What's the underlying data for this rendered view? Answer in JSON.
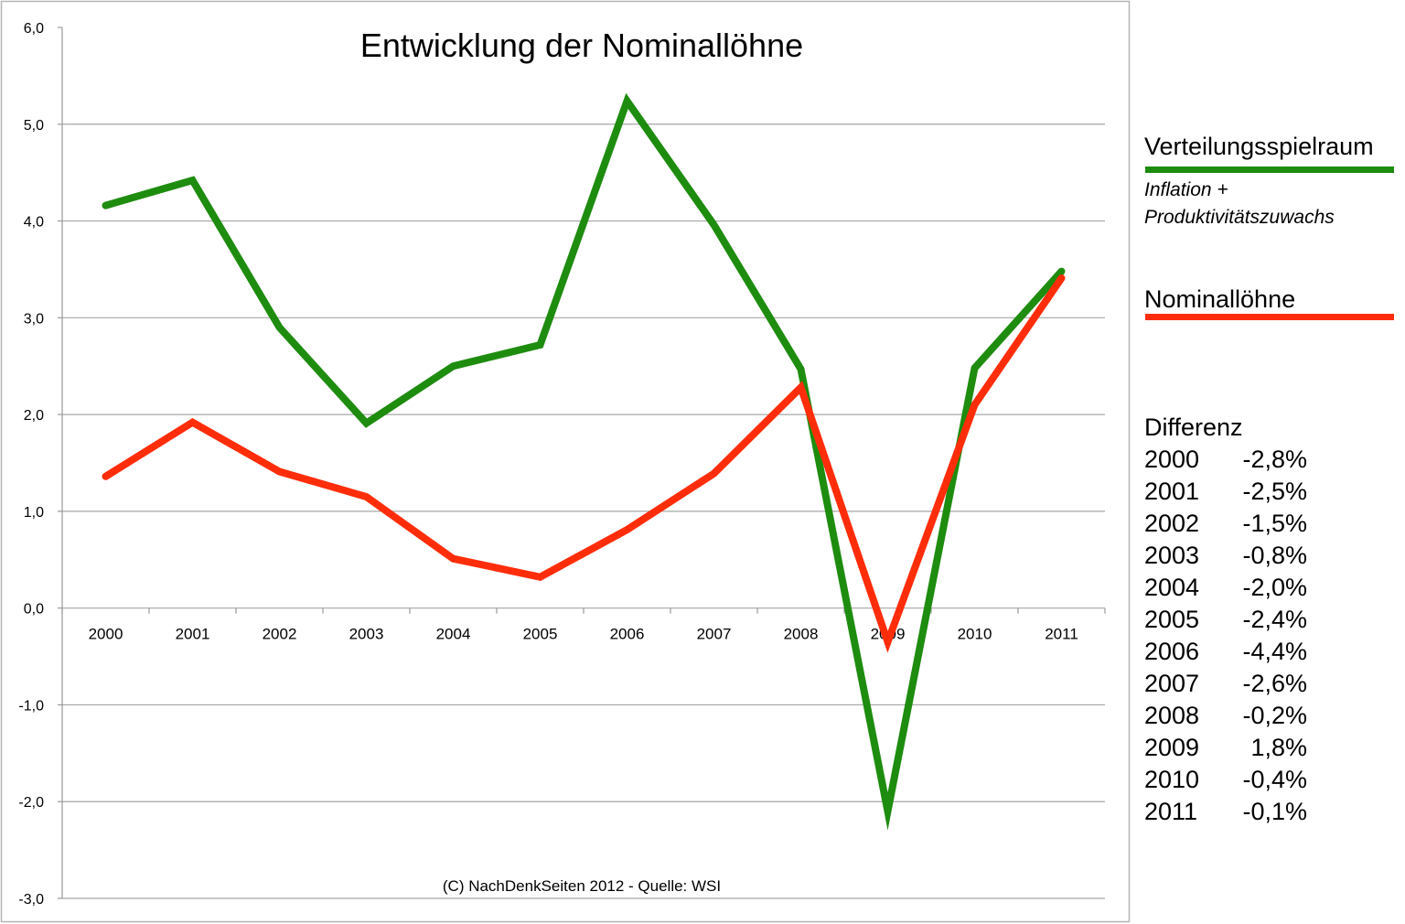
{
  "chart_data": {
    "type": "line",
    "title": "Entwicklung der Nominallöhne",
    "source_note": "(C) NachDenkSeiten 2012  - Quelle: WSI",
    "categories": [
      "2000",
      "2001",
      "2002",
      "2003",
      "2004",
      "2005",
      "2006",
      "2007",
      "2008",
      "2009",
      "2010",
      "2011"
    ],
    "ylim": [
      -3,
      6
    ],
    "yticks": [
      "6,0",
      "5,0",
      "4,0",
      "3,0",
      "2,0",
      "1,0",
      "0,0",
      "-1,0",
      "-2,0",
      "-3,0"
    ],
    "grid": true,
    "legend_placement": "right",
    "series": [
      {
        "name": "Verteilungsspielraum",
        "subtitle_line1": "Inflation +",
        "subtitle_line2": "Produktivitätszuwachs",
        "color": "#1e8c0f",
        "values": [
          4.16,
          4.42,
          2.9,
          1.91,
          2.5,
          2.72,
          5.24,
          3.96,
          2.47,
          -2.1,
          2.48,
          3.48
        ]
      },
      {
        "name": "Nominallöhne",
        "color": "#ff2d0a",
        "values": [
          1.36,
          1.92,
          1.41,
          1.15,
          0.51,
          0.32,
          0.81,
          1.39,
          2.28,
          -0.35,
          2.1,
          3.41
        ]
      }
    ],
    "difference": {
      "title": "Differenz",
      "rows": [
        {
          "year": "2000",
          "value": "-2,8%"
        },
        {
          "year": "2001",
          "value": "-2,5%"
        },
        {
          "year": "2002",
          "value": "-1,5%"
        },
        {
          "year": "2003",
          "value": "-0,8%"
        },
        {
          "year": "2004",
          "value": "-2,0%"
        },
        {
          "year": "2005",
          "value": "-2,4%"
        },
        {
          "year": "2006",
          "value": "-4,4%"
        },
        {
          "year": "2007",
          "value": "-2,6%"
        },
        {
          "year": "2008",
          "value": "-0,2%"
        },
        {
          "year": "2009",
          "value": "1,8%"
        },
        {
          "year": "2010",
          "value": "-0,4%"
        },
        {
          "year": "2011",
          "value": "-0,1%"
        }
      ]
    }
  }
}
